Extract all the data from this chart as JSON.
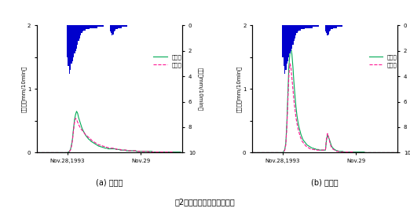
{
  "title": "噣2　実測値と計算値の比較",
  "panel_a_label": "(a) 耕作区",
  "panel_b_label": "(b) 放棄区",
  "legend_observed": "観測値",
  "legend_calculated": "計算値",
  "ylabel_left": "流出量（mm/10min）",
  "ylabel_right": "雨量（mm/10min）",
  "xlabel_tick1": "Nov.28,1993",
  "xlabel_tick2": "Nov.29",
  "ylim_flow": [
    0,
    2
  ],
  "ylim_rain": [
    0,
    10
  ],
  "color_observed": "#00aa55",
  "color_calculated": "#ff1493",
  "color_rain": "#0000cc",
  "n_points": 144,
  "tick_nov28": 30,
  "tick_nov29": 102,
  "rain": [
    0,
    0,
    0,
    0,
    0,
    0,
    0,
    0,
    0,
    0,
    0,
    0,
    0,
    0,
    0,
    0,
    0,
    0,
    0,
    0,
    0,
    0,
    0,
    0,
    0,
    0,
    0,
    0,
    0,
    0,
    2.5,
    3.2,
    3.8,
    3.5,
    3.0,
    2.8,
    2.5,
    2.2,
    2.0,
    1.8,
    1.5,
    1.2,
    1.0,
    0.8,
    0.6,
    0.5,
    0.4,
    0.4,
    0.3,
    0.3,
    0.3,
    0.3,
    0.2,
    0.2,
    0.2,
    0.2,
    0.2,
    0.2,
    0.2,
    0.2,
    0.1,
    0.1,
    0.1,
    0.1,
    0.1,
    0.1,
    0.0,
    0.0,
    0.0,
    0.0,
    0.0,
    0.0,
    0.5,
    0.6,
    0.8,
    0.7,
    0.5,
    0.4,
    0.3,
    0.3,
    0.2,
    0.2,
    0.2,
    0.2,
    0.1,
    0.1,
    0.1,
    0.1,
    0.1,
    0.0,
    0.0,
    0.0,
    0.0,
    0.0,
    0.0,
    0.0,
    0.0,
    0.0,
    0.0,
    0.0,
    0.0,
    0.0,
    0.0,
    0.0,
    0.0,
    0.0,
    0.0,
    0.0,
    0.0,
    0.0,
    0.0,
    0.0,
    0.0,
    0.0,
    0.0,
    0.0,
    0.0,
    0.0,
    0.0,
    0.0,
    0.0,
    0.0,
    0.0,
    0.0,
    0.0,
    0.0,
    0.0,
    0.0,
    0.0,
    0.0,
    0.0,
    0.0,
    0.0,
    0.0,
    0.0,
    0.0,
    0.0,
    0.0,
    0.0,
    0.0,
    0.0,
    0.0,
    0.0,
    0.0,
    0.0,
    0.0
  ],
  "flow_a_obs": [
    0,
    0,
    0,
    0,
    0,
    0,
    0,
    0,
    0,
    0,
    0,
    0,
    0,
    0,
    0,
    0,
    0,
    0,
    0,
    0,
    0,
    0,
    0,
    0,
    0,
    0,
    0,
    0,
    0,
    0,
    0.0,
    0.01,
    0.02,
    0.05,
    0.12,
    0.22,
    0.38,
    0.52,
    0.6,
    0.65,
    0.62,
    0.55,
    0.5,
    0.45,
    0.4,
    0.36,
    0.33,
    0.3,
    0.27,
    0.25,
    0.23,
    0.21,
    0.2,
    0.18,
    0.17,
    0.16,
    0.15,
    0.14,
    0.13,
    0.12,
    0.11,
    0.1,
    0.1,
    0.09,
    0.09,
    0.08,
    0.08,
    0.07,
    0.07,
    0.07,
    0.06,
    0.06,
    0.06,
    0.06,
    0.06,
    0.06,
    0.06,
    0.06,
    0.05,
    0.05,
    0.05,
    0.05,
    0.04,
    0.04,
    0.04,
    0.04,
    0.04,
    0.04,
    0.03,
    0.03,
    0.03,
    0.03,
    0.03,
    0.03,
    0.03,
    0.03,
    0.03,
    0.03,
    0.02,
    0.02,
    0.02,
    0.02,
    0.02,
    0.02,
    0.02,
    0.02,
    0.02,
    0.02,
    0.02,
    0.02,
    0.02,
    0.02,
    0.02,
    0.02,
    0.01,
    0.01,
    0.01,
    0.01,
    0.01,
    0.01,
    0.01,
    0.01,
    0.01,
    0.01,
    0.01,
    0.01,
    0.01,
    0.01,
    0.01,
    0.01,
    0.01,
    0.01,
    0.01,
    0.01,
    0.01,
    0.01,
    0.01,
    0.01,
    0.01,
    0.01,
    0.01,
    0.01,
    0.0,
    0.0
  ],
  "flow_a_calc": [
    0,
    0,
    0,
    0,
    0,
    0,
    0,
    0,
    0,
    0,
    0,
    0,
    0,
    0,
    0,
    0,
    0,
    0,
    0,
    0,
    0,
    0,
    0,
    0,
    0,
    0,
    0,
    0,
    0,
    0,
    0.0,
    0.01,
    0.02,
    0.04,
    0.1,
    0.2,
    0.35,
    0.48,
    0.54,
    0.52,
    0.48,
    0.44,
    0.41,
    0.38,
    0.36,
    0.34,
    0.32,
    0.3,
    0.28,
    0.27,
    0.25,
    0.24,
    0.22,
    0.21,
    0.19,
    0.18,
    0.17,
    0.16,
    0.15,
    0.14,
    0.13,
    0.12,
    0.12,
    0.11,
    0.11,
    0.1,
    0.1,
    0.09,
    0.09,
    0.08,
    0.08,
    0.07,
    0.07,
    0.07,
    0.07,
    0.07,
    0.06,
    0.06,
    0.06,
    0.05,
    0.05,
    0.05,
    0.05,
    0.04,
    0.04,
    0.04,
    0.04,
    0.04,
    0.04,
    0.04,
    0.03,
    0.03,
    0.03,
    0.03,
    0.03,
    0.03,
    0.03,
    0.03,
    0.02,
    0.02,
    0.02,
    0.02,
    0.02,
    0.02,
    0.02,
    0.02,
    0.02,
    0.02,
    0.02,
    0.02,
    0.01,
    0.01,
    0.01,
    0.01,
    0.01,
    0.01,
    0.01,
    0.01,
    0.01,
    0.01,
    0.01,
    0.01,
    0.01,
    0.01,
    0.01,
    0.01,
    0.01,
    0.01,
    0.01,
    0.01,
    0.01,
    0.01,
    0.01,
    0.01,
    0.0,
    0.0,
    0.0,
    0.0,
    0.0,
    0.0,
    0.0,
    0.0,
    0.0,
    0.0,
    0.0,
    0.0
  ],
  "flow_b_obs": [
    0,
    0,
    0,
    0,
    0,
    0,
    0,
    0,
    0,
    0,
    0,
    0,
    0,
    0,
    0,
    0,
    0,
    0,
    0,
    0,
    0,
    0,
    0,
    0,
    0,
    0,
    0,
    0,
    0,
    0,
    0.0,
    0.02,
    0.05,
    0.15,
    0.45,
    0.9,
    1.35,
    1.55,
    1.65,
    1.55,
    1.35,
    1.1,
    0.9,
    0.72,
    0.58,
    0.48,
    0.4,
    0.34,
    0.28,
    0.24,
    0.2,
    0.18,
    0.16,
    0.14,
    0.12,
    0.11,
    0.1,
    0.09,
    0.08,
    0.07,
    0.07,
    0.06,
    0.06,
    0.05,
    0.05,
    0.05,
    0.04,
    0.04,
    0.04,
    0.04,
    0.04,
    0.04,
    0.04,
    0.2,
    0.28,
    0.24,
    0.2,
    0.15,
    0.1,
    0.08,
    0.06,
    0.05,
    0.04,
    0.03,
    0.03,
    0.02,
    0.02,
    0.02,
    0.02,
    0.02,
    0.01,
    0.01,
    0.01,
    0.01,
    0.01,
    0.01,
    0.01,
    0.01,
    0.01,
    0.01,
    0.01,
    0.01,
    0.01,
    0.01,
    0.01,
    0.01,
    0.01,
    0.01,
    0.01,
    0.01,
    0.01,
    0.0,
    0.0,
    0.0,
    0.0,
    0.0,
    0.0,
    0.0,
    0.0,
    0.0,
    0.0,
    0.0,
    0.0,
    0.0,
    0.0,
    0.0,
    0.0,
    0.0,
    0.0,
    0.0,
    0.0,
    0.0,
    0.0,
    0.0,
    0.0,
    0.0,
    0.0,
    0.0,
    0.0,
    0.0,
    0.0,
    0.0,
    0.0,
    0.0,
    0.0
  ],
  "flow_b_calc": [
    0,
    0,
    0,
    0,
    0,
    0,
    0,
    0,
    0,
    0,
    0,
    0,
    0,
    0,
    0,
    0,
    0,
    0,
    0,
    0,
    0,
    0,
    0,
    0,
    0,
    0,
    0,
    0,
    0,
    0,
    0.0,
    0.01,
    0.04,
    0.12,
    0.38,
    0.78,
    1.2,
    1.4,
    1.35,
    1.18,
    1.0,
    0.82,
    0.68,
    0.55,
    0.46,
    0.38,
    0.32,
    0.26,
    0.22,
    0.18,
    0.16,
    0.14,
    0.12,
    0.1,
    0.09,
    0.08,
    0.07,
    0.06,
    0.06,
    0.05,
    0.05,
    0.05,
    0.04,
    0.04,
    0.04,
    0.04,
    0.04,
    0.04,
    0.04,
    0.04,
    0.04,
    0.04,
    0.04,
    0.22,
    0.3,
    0.25,
    0.18,
    0.12,
    0.08,
    0.06,
    0.05,
    0.04,
    0.03,
    0.02,
    0.02,
    0.02,
    0.01,
    0.01,
    0.01,
    0.01,
    0.01,
    0.01,
    0.01,
    0.01,
    0.01,
    0.01,
    0.01,
    0.01,
    0.01,
    0.01,
    0.01,
    0.0,
    0.0,
    0.0,
    0.0,
    0.0,
    0.0,
    0.0,
    0.0,
    0.0,
    0.0,
    0.0,
    0.0,
    0.0,
    0.0,
    0.0,
    0.0,
    0.0,
    0.0,
    0.0,
    0.0,
    0.0,
    0.0,
    0.0,
    0.0,
    0.0,
    0.0,
    0.0,
    0.0,
    0.0,
    0.0,
    0.0,
    0.0,
    0.0,
    0.0,
    0.0,
    0.0,
    0.0,
    0.0,
    0.0,
    0.0,
    0.0,
    0.0,
    0.0,
    0.0
  ]
}
